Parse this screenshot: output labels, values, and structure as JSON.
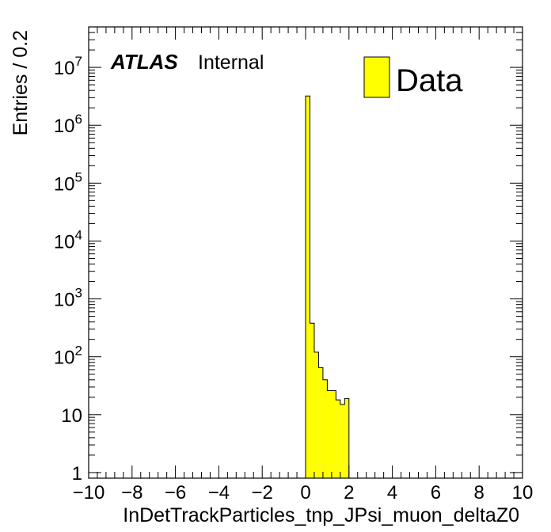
{
  "chart_data": {
    "type": "bar",
    "title": "",
    "xlabel": "InDetTrackParticles_tnp_JPsi_muon_deltaZ0",
    "ylabel": "Entries / 0.2",
    "yscale": "log",
    "xlim": [
      -10,
      10
    ],
    "ylim": [
      0.8,
      50000000
    ],
    "grid": false,
    "legend_position": "top-right",
    "x_ticks": [
      -10,
      -8,
      -6,
      -4,
      -2,
      0,
      2,
      4,
      6,
      8,
      10
    ],
    "x_tick_labels": [
      "−10",
      "−8",
      "−6",
      "−4",
      "−2",
      "0",
      "2",
      "4",
      "6",
      "8",
      "10"
    ],
    "y_ticks": [
      {
        "value": 1,
        "base": "1",
        "exp": ""
      },
      {
        "value": 10,
        "base": "10",
        "exp": ""
      },
      {
        "value": 100,
        "base": "10",
        "exp": "2"
      },
      {
        "value": 1000,
        "base": "10",
        "exp": "3"
      },
      {
        "value": 10000,
        "base": "10",
        "exp": "4"
      },
      {
        "value": 100000,
        "base": "10",
        "exp": "5"
      },
      {
        "value": 1000000,
        "base": "10",
        "exp": "6"
      },
      {
        "value": 10000000,
        "base": "10",
        "exp": "7"
      }
    ],
    "bin_width": 0.2,
    "series": [
      {
        "name": "Data",
        "color": "#ffff00",
        "bin_lows": [
          0.0,
          0.2,
          0.4,
          0.6,
          0.8,
          1.0,
          1.2,
          1.4,
          1.6,
          1.8
        ],
        "values": [
          3200000,
          380,
          120,
          65,
          40,
          26,
          26,
          18,
          15,
          19
        ]
      }
    ],
    "annotations": {
      "atlas": "ATLAS",
      "status": "Internal"
    }
  }
}
